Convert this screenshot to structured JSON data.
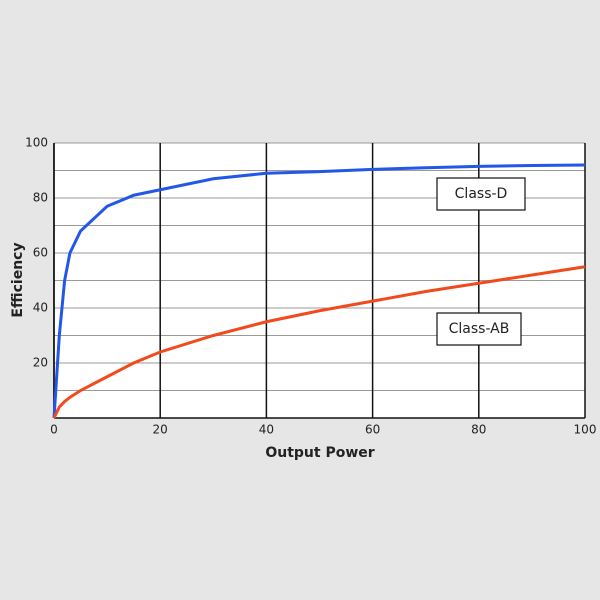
{
  "chart_data": {
    "type": "line",
    "x_label": "Output Power",
    "y_label": "Efficiency",
    "x": [
      0,
      1,
      2,
      3,
      5,
      10,
      15,
      20,
      30,
      40,
      50,
      60,
      70,
      80,
      90,
      100
    ],
    "series": [
      {
        "name": "Class-D",
        "color": "#2257e8",
        "values": [
          0,
          30,
          50,
          60,
          68,
          77,
          81,
          83,
          87,
          89,
          89.6,
          90.4,
          91,
          91.5,
          91.8,
          92
        ]
      },
      {
        "name": "Class-AB",
        "color": "#f24a1c",
        "values": [
          0,
          4,
          6,
          7.5,
          10,
          15,
          20,
          24,
          30,
          35,
          39,
          42.5,
          46,
          49,
          52,
          55
        ]
      }
    ],
    "xlim": [
      0,
      100
    ],
    "ylim": [
      0,
      100
    ],
    "xticks": [
      0,
      20,
      40,
      60,
      80,
      100
    ],
    "yticks": [
      20,
      40,
      60,
      80,
      100
    ],
    "yminorticks": [
      10,
      30,
      50,
      70,
      90
    ],
    "grid": true
  }
}
